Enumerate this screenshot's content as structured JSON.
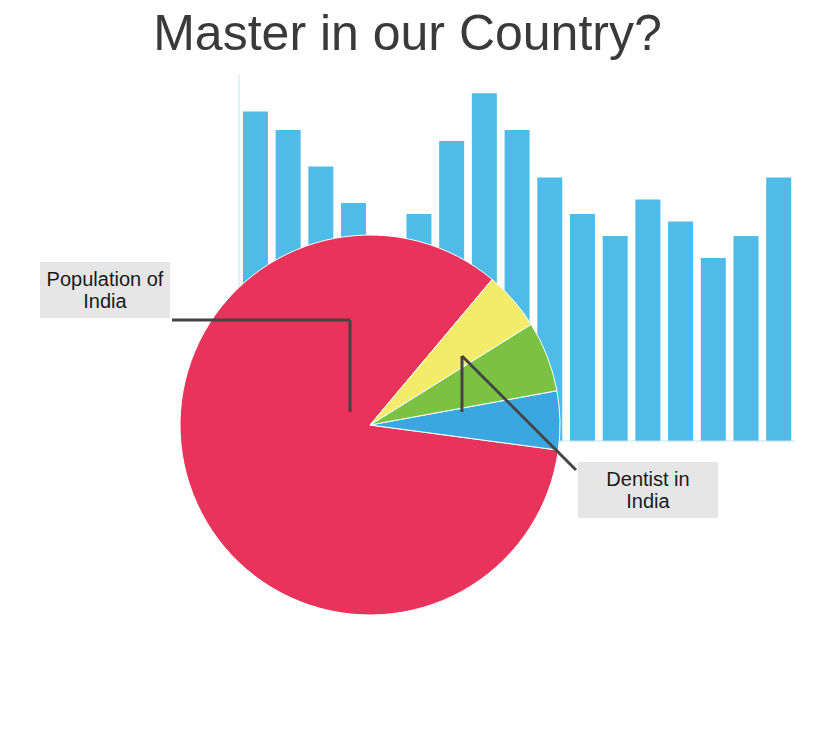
{
  "chart_data": [
    {
      "type": "bar",
      "categories": [
        null,
        null,
        null,
        null,
        null,
        null,
        null,
        null,
        null,
        null,
        null,
        null,
        null,
        null,
        null,
        null,
        null
      ],
      "values": [
        90,
        85,
        75,
        65,
        55,
        62,
        82,
        95,
        85,
        72,
        62,
        56,
        66,
        60,
        50,
        56,
        72
      ],
      "color": "#4fbbe8",
      "ylim": [
        0,
        100
      ],
      "tick_labels": false
    },
    {
      "type": "pie",
      "title": "Master in our Country?",
      "categories": [
        "Population of India",
        null,
        "Dentist in India",
        null
      ],
      "values": [
        84,
        5,
        6,
        5
      ],
      "colors": [
        "#e8335a",
        "#3aa7e0",
        "#7cc242",
        "#f2ec6a"
      ]
    }
  ]
}
